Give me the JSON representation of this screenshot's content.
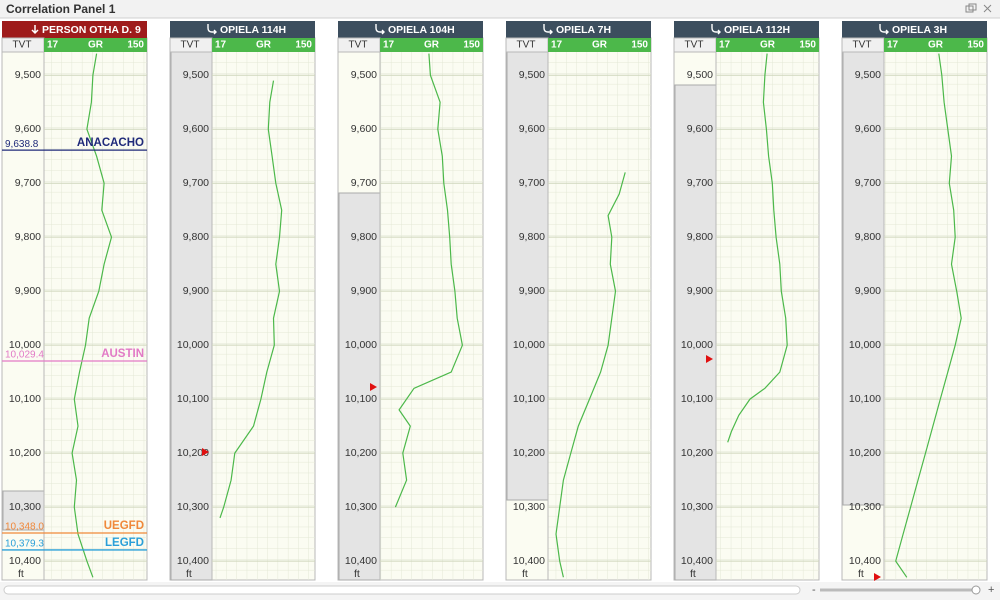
{
  "panel": {
    "title": "Correlation Panel 1"
  },
  "depth_axis": {
    "lim": [
      9457,
      10435
    ],
    "ticks": [
      {
        "value": 9500,
        "label": "9,500"
      },
      {
        "value": 9600,
        "label": "9,600"
      },
      {
        "value": 9700,
        "label": "9,700"
      },
      {
        "value": 9800,
        "label": "9,800"
      },
      {
        "value": 9900,
        "label": "9,900"
      },
      {
        "value": 10000,
        "label": "10,000"
      },
      {
        "value": 10100,
        "label": "10,100"
      },
      {
        "value": 10200,
        "label": "10,200"
      },
      {
        "value": 10300,
        "label": "10,300"
      },
      {
        "value": 10400,
        "label": "10,400"
      }
    ],
    "name": "TVT",
    "unit": "ft"
  },
  "curve_scale": {
    "min": 17,
    "name": "GR",
    "max": 150,
    "color": "#4cb84a"
  },
  "tracks": [
    {
      "name": "PERSON OTHA D. 9",
      "header_color": "#9e1b1b",
      "curve": {
        "depth": [
          9460,
          9500,
          9550,
          9600,
          9650,
          9700,
          9750,
          9800,
          9850,
          9900,
          9950,
          10000,
          10050,
          10100,
          10150,
          10200,
          10250,
          10300,
          10350,
          10400,
          10430
        ],
        "gr": [
          85,
          80,
          78,
          72,
          85,
          95,
          92,
          105,
          95,
          88,
          75,
          70,
          62,
          55,
          60,
          52,
          58,
          55,
          60,
          72,
          80
        ]
      },
      "tops": [
        {
          "name": "ANACACHO",
          "depth": {
            "value": 9638.8,
            "label": "9,638.8"
          },
          "color": "#1f2a7a"
        },
        {
          "name": "AUSTIN",
          "depth": {
            "value": 10029.4,
            "label": "10,029.4"
          },
          "color": "#e27ac6"
        },
        {
          "name": "UEGFD",
          "depth": {
            "value": 10348.0,
            "label": "10,348.0"
          },
          "color": "#f0883a"
        },
        {
          "name": "LEGFD",
          "depth": {
            "value": 10379.3,
            "label": "10,379.3"
          },
          "color": "#2a9fd8"
        }
      ]
    },
    {
      "name": "OPIELA 114H",
      "header_color": "#3c4e5e",
      "curve": {
        "depth": [
          9510,
          9550,
          9600,
          9650,
          9700,
          9750,
          9800,
          9850,
          9900,
          9950,
          10000,
          10050,
          10100,
          10150,
          10200,
          10250,
          10300,
          10320
        ],
        "gr": [
          97,
          92,
          90,
          95,
          100,
          108,
          105,
          100,
          105,
          97,
          98,
          88,
          80,
          70,
          45,
          40,
          30,
          25
        ]
      }
    },
    {
      "name": "OPIELA 104H",
      "header_color": "#3c4e5e",
      "curve": {
        "depth": [
          9460,
          9500,
          9550,
          9600,
          9650,
          9700,
          9750,
          9800,
          9850,
          9900,
          9950,
          10000,
          10050,
          10080,
          10120,
          10150,
          10200,
          10250,
          10300
        ],
        "gr": [
          80,
          82,
          95,
          92,
          98,
          100,
          105,
          108,
          110,
          115,
          118,
          125,
          110,
          60,
          40,
          55,
          45,
          50,
          35
        ]
      }
    },
    {
      "name": "OPIELA 7H",
      "header_color": "#3c4e5e",
      "curve": {
        "depth": [
          9680,
          9720,
          9760,
          9800,
          9850,
          9900,
          9950,
          10000,
          10050,
          10100,
          10150,
          10200,
          10250,
          10300,
          10350,
          10400,
          10430
        ],
        "gr": [
          118,
          110,
          95,
          100,
          98,
          105,
          100,
          95,
          85,
          70,
          55,
          45,
          35,
          30,
          25,
          30,
          35
        ]
      }
    },
    {
      "name": "OPIELA 112H",
      "header_color": "#3c4e5e",
      "curve": {
        "depth": [
          9460,
          9500,
          9550,
          9600,
          9650,
          9700,
          9750,
          9800,
          9850,
          9900,
          9950,
          10000,
          10050,
          10080,
          10100,
          10130,
          10160,
          10180
        ],
        "gr": [
          83,
          80,
          78,
          82,
          85,
          90,
          92,
          95,
          100,
          102,
          108,
          110,
          100,
          80,
          60,
          45,
          35,
          30
        ]
      }
    },
    {
      "name": "OPIELA 3H",
      "header_color": "#3c4e5e",
      "curve": {
        "depth": [
          9460,
          9500,
          9550,
          9600,
          9650,
          9700,
          9750,
          9800,
          9850,
          9900,
          9950,
          10000,
          10050,
          10100,
          10150,
          10200,
          10250,
          10300,
          10350,
          10400,
          10430
        ],
        "gr": [
          88,
          92,
          95,
          100,
          105,
          102,
          108,
          110,
          105,
          112,
          118,
          110,
          100,
          90,
          80,
          70,
          60,
          50,
          40,
          30,
          45
        ]
      }
    }
  ]
}
